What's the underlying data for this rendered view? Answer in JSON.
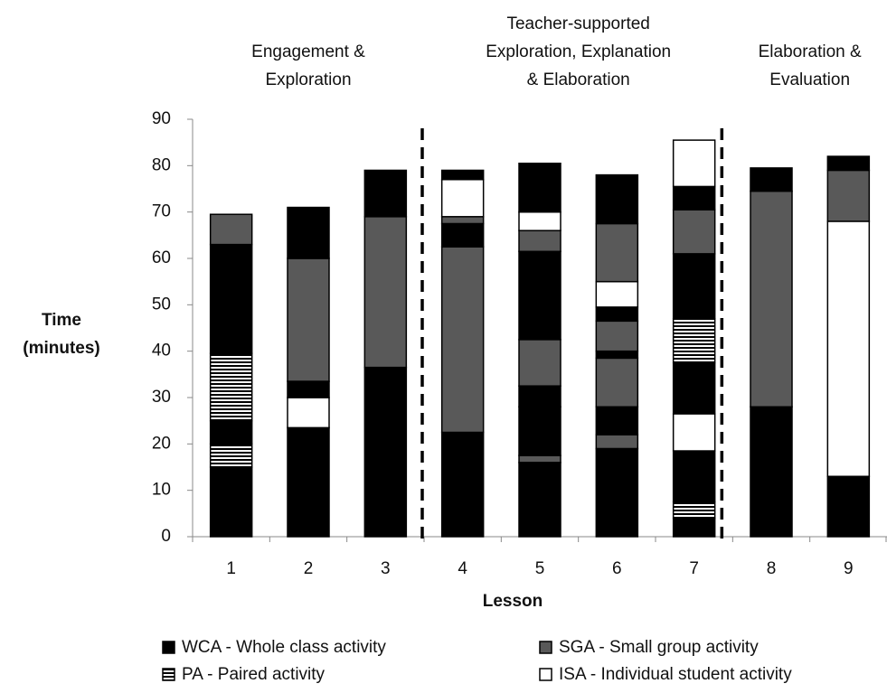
{
  "chart_data": {
    "type": "bar",
    "phases": [
      {
        "lines": [
          "Engagement &",
          "Exploration"
        ]
      },
      {
        "lines": [
          "Teacher-supported",
          "Exploration, Explanation",
          "& Elaboration"
        ]
      },
      {
        "lines": [
          "Elaboration &",
          "Evaluation"
        ]
      }
    ],
    "xlabel": "Lesson",
    "ylabel": [
      "Time",
      "(minutes)"
    ],
    "categories": [
      "1",
      "2",
      "3",
      "4",
      "5",
      "6",
      "7",
      "8",
      "9"
    ],
    "series": [
      {
        "name": "WCA - Whole class activity",
        "color": "#000000"
      },
      {
        "name": "SGA - Small group activity",
        "color": "#595959"
      },
      {
        "name": "PA - Paired activity",
        "color": "striped"
      },
      {
        "name": "ISA - Individual student activity",
        "color": "#ffffff"
      }
    ],
    "stacks": [
      [
        {
          "series": 0,
          "value": 15
        },
        {
          "series": 2,
          "value": 5
        },
        {
          "series": 0,
          "value": 5
        },
        {
          "series": 2,
          "value": 14.5
        },
        {
          "series": 0,
          "value": 23.5
        },
        {
          "series": 1,
          "value": 6.5
        }
      ],
      [
        {
          "series": 0,
          "value": 23.5
        },
        {
          "series": 3,
          "value": 6.5
        },
        {
          "series": 0,
          "value": 3.5
        },
        {
          "series": 1,
          "value": 26.5
        },
        {
          "series": 0,
          "value": 11
        }
      ],
      [
        {
          "series": 0,
          "value": 36.5
        },
        {
          "series": 1,
          "value": 32.5
        },
        {
          "series": 0,
          "value": 10
        }
      ],
      [
        {
          "series": 0,
          "value": 22.5
        },
        {
          "series": 1,
          "value": 40
        },
        {
          "series": 0,
          "value": 5
        },
        {
          "series": 1,
          "value": 1.5
        },
        {
          "series": 3,
          "value": 8
        },
        {
          "series": 0,
          "value": 2
        }
      ],
      [
        {
          "series": 0,
          "value": 16
        },
        {
          "series": 1,
          "value": 1.5
        },
        {
          "series": 0,
          "value": 10.5
        },
        {
          "series": 0,
          "value": 4.5
        },
        {
          "series": 1,
          "value": 10
        },
        {
          "series": 0,
          "value": 19
        },
        {
          "series": 1,
          "value": 4.5
        },
        {
          "series": 3,
          "value": 4
        },
        {
          "series": 0,
          "value": 10.5
        }
      ],
      [
        {
          "series": 0,
          "value": 19
        },
        {
          "series": 1,
          "value": 3
        },
        {
          "series": 0,
          "value": 6
        },
        {
          "series": 1,
          "value": 10.5
        },
        {
          "series": 0,
          "value": 1.5
        },
        {
          "series": 1,
          "value": 6.5
        },
        {
          "series": 0,
          "value": 3
        },
        {
          "series": 3,
          "value": 5.5
        },
        {
          "series": 1,
          "value": 12.5
        },
        {
          "series": 0,
          "value": 10.5
        }
      ],
      [
        {
          "series": 0,
          "value": 4
        },
        {
          "series": 2,
          "value": 3.5
        },
        {
          "series": 0,
          "value": 11
        },
        {
          "series": 3,
          "value": 8
        },
        {
          "series": 0,
          "value": 11
        },
        {
          "series": 2,
          "value": 9.5
        },
        {
          "series": 0,
          "value": 14
        },
        {
          "series": 1,
          "value": 9.5
        },
        {
          "series": 0,
          "value": 5
        },
        {
          "series": 3,
          "value": 10
        }
      ],
      [
        {
          "series": 0,
          "value": 28
        },
        {
          "series": 1,
          "value": 46.5
        },
        {
          "series": 0,
          "value": 5
        }
      ],
      [
        {
          "series": 0,
          "value": 13
        },
        {
          "series": 3,
          "value": 55
        },
        {
          "series": 1,
          "value": 11
        },
        {
          "series": 0,
          "value": 3
        }
      ]
    ],
    "ylim": [
      0,
      90
    ],
    "yticks": [
      0,
      10,
      20,
      30,
      40,
      50,
      60,
      70,
      80,
      90
    ],
    "legend": "bottom"
  }
}
